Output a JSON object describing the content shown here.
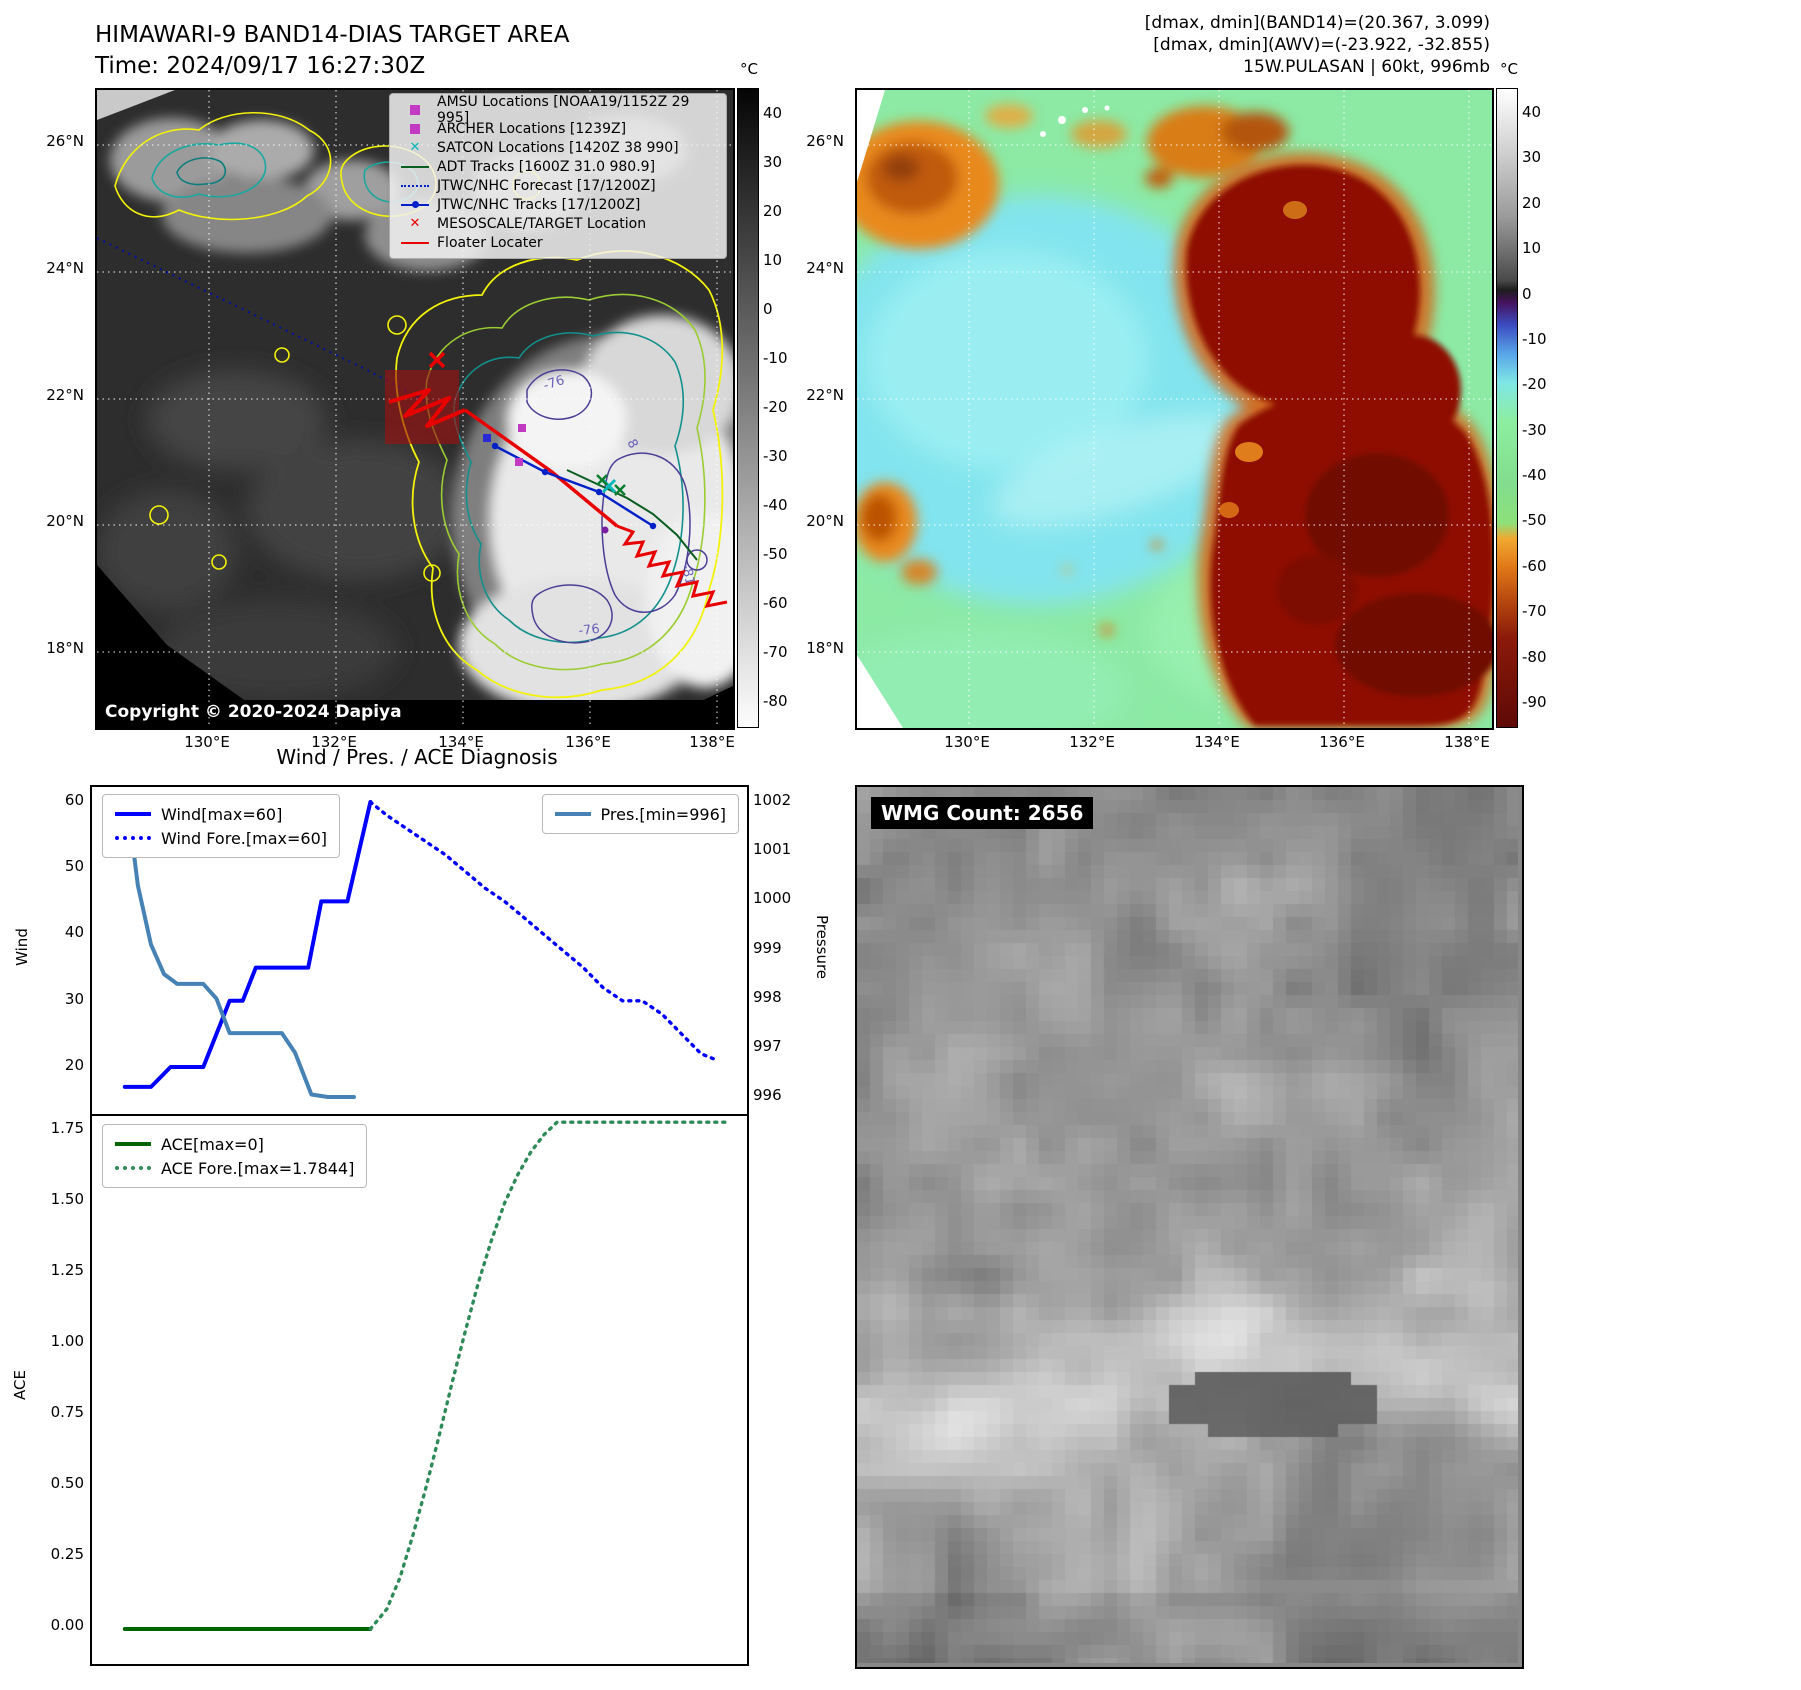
{
  "colors": {
    "wind": "#0000ff",
    "wind_forecast": "#0000ff",
    "pressure": "#4682b4",
    "ace": "#006400",
    "ace_forecast": "#2e8b57",
    "floater_track": "#e80000",
    "jtwc_track": "#0021c8",
    "adt_track": "#0a5d1e",
    "amsu_marker": "#c23ac2",
    "satcon_marker": "#00b7b7"
  },
  "band14": {
    "title": "HIMAWARI-9 BAND14-DIAS TARGET AREA",
    "time": "Time: 2024/09/17 16:27:30Z",
    "copyright": "Copyright © 2020-2024 Dapiya",
    "colorbar_unit": "°C",
    "colorbar_ticks": [
      "40",
      "30",
      "20",
      "10",
      "0",
      "-10",
      "-20",
      "-30",
      "-40",
      "-50",
      "-60",
      "-70",
      "-80"
    ],
    "lat_ticks": [
      "26°N",
      "24°N",
      "22°N",
      "20°N",
      "18°N"
    ],
    "lon_ticks": [
      "130°E",
      "132°E",
      "134°E",
      "136°E",
      "138°E"
    ],
    "legend": [
      "AMSU Locations [NOAA19/1152Z 29 995]",
      "ARCHER Locations [1239Z]",
      "SATCON Locations [1420Z 38 990]",
      "ADT Tracks [1600Z 31.0 980.9]",
      "JTWC/NHC Forecast [17/1200Z]",
      "JTWC/NHC Tracks [17/1200Z]",
      "MESOSCALE/TARGET Location",
      "Floater Locater"
    ],
    "contour_labels": [
      "-76",
      "-81",
      "-76",
      "8"
    ]
  },
  "awv": {
    "header": [
      "[dmax, dmin](BAND14)=(20.367, 3.099)",
      "[dmax, dmin](AWV)=(-23.922, -32.855)",
      "15W.PULASAN | 60kt, 996mb"
    ],
    "colorbar_unit": "°C",
    "colorbar_ticks": [
      "40",
      "30",
      "20",
      "10",
      "0",
      "-10",
      "-20",
      "-30",
      "-40",
      "-50",
      "-60",
      "-70",
      "-80",
      "-90"
    ],
    "lat_ticks": [
      "26°N",
      "24°N",
      "22°N",
      "20°N",
      "18°N"
    ],
    "lon_ticks": [
      "130°E",
      "132°E",
      "134°E",
      "136°E",
      "138°E"
    ]
  },
  "diagnosis": {
    "title": "Wind / Pres. / ACE Diagnosis",
    "wind_ylabel": "Wind",
    "pressure_ylabel": "Pressure",
    "ace_ylabel": "ACE",
    "wind_yticks": [
      "60",
      "50",
      "40",
      "30",
      "20"
    ],
    "pressure_yticks": [
      "1002",
      "1001",
      "1000",
      "999",
      "998",
      "997",
      "996"
    ],
    "ace_yticks": [
      "1.75",
      "1.50",
      "1.25",
      "1.00",
      "0.75",
      "0.50",
      "0.25",
      "0.00"
    ],
    "wind_legend": [
      "Wind[max=60]",
      "Wind Fore.[max=60]"
    ],
    "pressure_legend": "Pres.[min=996]",
    "ace_legend": [
      "ACE[max=0]",
      "ACE Fore.[max=1.7844]"
    ]
  },
  "wmg": {
    "count": "WMG Count: 2656"
  },
  "chart_data": [
    {
      "id": "wind-pressure",
      "type": "line",
      "title": "Wind / Pres. / ACE Diagnosis",
      "ylabel_left": "Wind",
      "ylabel_right": "Pressure",
      "ylim_left": [
        13,
        62.3
      ],
      "ylim_right": [
        995.65,
        1002.3
      ],
      "yticks_left": [
        20,
        30,
        40,
        50,
        60
      ],
      "yticks_right": [
        996,
        997,
        998,
        999,
        1000,
        1001,
        1002
      ],
      "x_note": "x normalized 0-100, no x tick labels shown",
      "legend_position": "upper left / upper right",
      "series": [
        {
          "name": "Wind[max=60]",
          "axis": "left",
          "style": "solid",
          "color": "#0000ff",
          "x": [
            5,
            9,
            12,
            17,
            19,
            21,
            23,
            25,
            27,
            33,
            35,
            39,
            42.5
          ],
          "y": [
            17,
            17,
            20,
            20,
            25,
            30,
            30,
            35,
            35,
            35,
            45,
            45,
            60
          ]
        },
        {
          "name": "Wind Fore.[max=60]",
          "axis": "left",
          "style": "dotted",
          "color": "#0000ff",
          "x": [
            42.5,
            45,
            48,
            51,
            54,
            57,
            60,
            63,
            66,
            69,
            72,
            75,
            78,
            81,
            84,
            87,
            90,
            93,
            95.5
          ],
          "y": [
            60,
            58,
            56,
            54,
            52,
            49.5,
            47,
            45,
            42.5,
            40,
            37.5,
            35,
            32,
            30,
            30,
            28,
            25,
            22,
            21
          ]
        },
        {
          "name": "Pres.[min=996]",
          "axis": "right",
          "style": "solid",
          "color": "#4682b4",
          "x": [
            5.5,
            7,
            9,
            11,
            13,
            17,
            19,
            21,
            29,
            31,
            33.5,
            36,
            40
          ],
          "y": [
            1001.9,
            1000.3,
            999.1,
            998.5,
            998.3,
            998.3,
            998.0,
            997.3,
            997.3,
            996.9,
            996.05,
            996,
            996
          ]
        }
      ]
    },
    {
      "id": "ace",
      "type": "line",
      "ylabel_left": "ACE",
      "ylim_left": [
        -0.06,
        1.84
      ],
      "yticks_left": [
        0.0,
        0.25,
        0.5,
        0.75,
        1.0,
        1.25,
        1.5,
        1.75
      ],
      "x_note": "x normalized 0-100, no x tick labels shown",
      "series": [
        {
          "name": "ACE[max=0]",
          "axis": "left",
          "style": "solid",
          "color": "#006400",
          "x": [
            5,
            42.5
          ],
          "y": [
            0,
            0
          ]
        },
        {
          "name": "ACE Fore.[max=1.7844]",
          "axis": "left",
          "style": "dotted",
          "color": "#2e8b57",
          "x": [
            42.5,
            45,
            47,
            49,
            51,
            53,
            55,
            57,
            59,
            61,
            63,
            65,
            67,
            69,
            71,
            97
          ],
          "y": [
            0,
            0.07,
            0.18,
            0.33,
            0.5,
            0.68,
            0.87,
            1.05,
            1.22,
            1.37,
            1.5,
            1.6,
            1.68,
            1.74,
            1.7844,
            1.7844
          ]
        }
      ]
    }
  ]
}
